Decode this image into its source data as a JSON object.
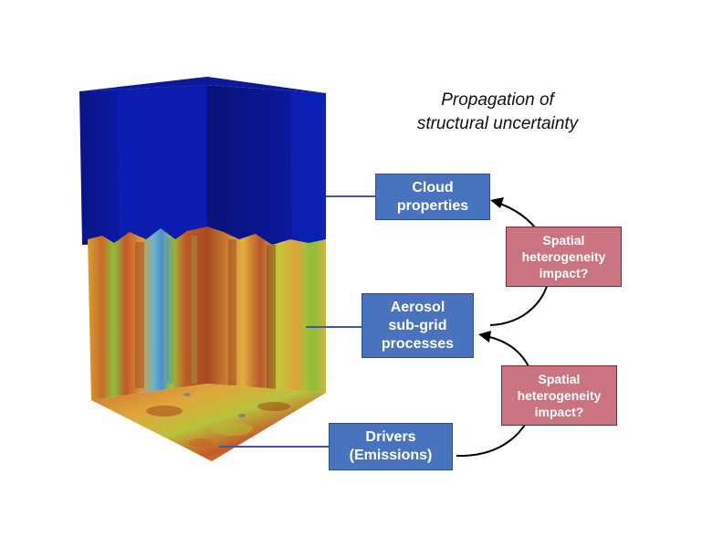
{
  "title": {
    "line1": "Propagation of",
    "line2": "structural uncertainty"
  },
  "boxes": {
    "cloud": {
      "line1": "Cloud",
      "line2": "properties"
    },
    "aerosol": {
      "line1": "Aerosol",
      "line2": "sub-grid",
      "line3": "processes"
    },
    "drivers": {
      "line1": "Drivers",
      "line2": "(Emissions)"
    },
    "impact_upper": {
      "line1": "Spatial",
      "line2": "heterogeneity",
      "line3": "impact?"
    },
    "impact_lower": {
      "line1": "Spatial",
      "line2": "heterogeneity",
      "line3": "impact?"
    }
  },
  "colors": {
    "box_fill": "#4a73bf",
    "box_border": "#2f5090",
    "impact_fill": "#c97480",
    "impact_border": "#7e2b35",
    "cube_top": "#0a1aa0",
    "connector": "#3b5aa8",
    "arrow": "#000000"
  }
}
